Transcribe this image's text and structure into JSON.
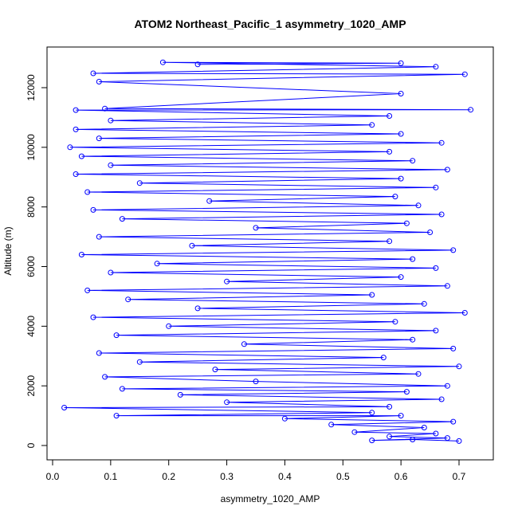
{
  "chart_data": {
    "type": "line",
    "title": "ATOM2 Northeast_Pacific_1 asymmetry_1020_AMP",
    "xlabel": "asymmetry_1020_AMP",
    "ylabel": "Altitude (m)",
    "xlim": [
      0.0,
      0.75
    ],
    "ylim": [
      0,
      13000
    ],
    "x_ticks": [
      0.0,
      0.1,
      0.2,
      0.3,
      0.4,
      0.5,
      0.6,
      0.7
    ],
    "x_tick_labels": [
      "0.0",
      "0.1",
      "0.2",
      "0.3",
      "0.4",
      "0.5",
      "0.6",
      "0.7"
    ],
    "y_ticks": [
      0,
      2000,
      4000,
      6000,
      8000,
      10000,
      12000
    ],
    "y_tick_labels": [
      "0",
      "2000",
      "4000",
      "6000",
      "8000",
      "10000",
      "12000"
    ],
    "grid": false,
    "legend": "none",
    "series": [
      {
        "color": "#0000ff",
        "marker": "open-circle",
        "points": [
          [
            0.7,
            150
          ],
          [
            0.62,
            200
          ],
          [
            0.55,
            170
          ],
          [
            0.68,
            250
          ],
          [
            0.58,
            300
          ],
          [
            0.66,
            400
          ],
          [
            0.52,
            450
          ],
          [
            0.64,
            600
          ],
          [
            0.48,
            700
          ],
          [
            0.69,
            800
          ],
          [
            0.4,
            900
          ],
          [
            0.6,
            1000
          ],
          [
            0.11,
            1000
          ],
          [
            0.55,
            1100
          ],
          [
            0.02,
            1270
          ],
          [
            0.58,
            1300
          ],
          [
            0.3,
            1450
          ],
          [
            0.67,
            1550
          ],
          [
            0.22,
            1700
          ],
          [
            0.61,
            1800
          ],
          [
            0.12,
            1900
          ],
          [
            0.68,
            2000
          ],
          [
            0.35,
            2150
          ],
          [
            0.09,
            2300
          ],
          [
            0.63,
            2400
          ],
          [
            0.28,
            2550
          ],
          [
            0.7,
            2650
          ],
          [
            0.15,
            2800
          ],
          [
            0.57,
            2950
          ],
          [
            0.08,
            3100
          ],
          [
            0.69,
            3250
          ],
          [
            0.33,
            3400
          ],
          [
            0.62,
            3550
          ],
          [
            0.11,
            3700
          ],
          [
            0.66,
            3850
          ],
          [
            0.2,
            4000
          ],
          [
            0.59,
            4150
          ],
          [
            0.07,
            4300
          ],
          [
            0.71,
            4450
          ],
          [
            0.25,
            4600
          ],
          [
            0.64,
            4750
          ],
          [
            0.13,
            4900
          ],
          [
            0.55,
            5050
          ],
          [
            0.06,
            5200
          ],
          [
            0.68,
            5350
          ],
          [
            0.3,
            5500
          ],
          [
            0.6,
            5650
          ],
          [
            0.1,
            5800
          ],
          [
            0.66,
            5950
          ],
          [
            0.18,
            6100
          ],
          [
            0.62,
            6250
          ],
          [
            0.05,
            6400
          ],
          [
            0.69,
            6550
          ],
          [
            0.24,
            6700
          ],
          [
            0.58,
            6850
          ],
          [
            0.08,
            7000
          ],
          [
            0.65,
            7150
          ],
          [
            0.35,
            7300
          ],
          [
            0.61,
            7450
          ],
          [
            0.12,
            7600
          ],
          [
            0.67,
            7750
          ],
          [
            0.07,
            7900
          ],
          [
            0.63,
            8050
          ],
          [
            0.27,
            8200
          ],
          [
            0.59,
            8350
          ],
          [
            0.06,
            8500
          ],
          [
            0.66,
            8650
          ],
          [
            0.15,
            8800
          ],
          [
            0.6,
            8950
          ],
          [
            0.04,
            9100
          ],
          [
            0.68,
            9250
          ],
          [
            0.1,
            9400
          ],
          [
            0.62,
            9550
          ],
          [
            0.05,
            9700
          ],
          [
            0.58,
            9850
          ],
          [
            0.03,
            10000
          ],
          [
            0.67,
            10150
          ],
          [
            0.08,
            10300
          ],
          [
            0.6,
            10450
          ],
          [
            0.04,
            10600
          ],
          [
            0.55,
            10750
          ],
          [
            0.1,
            10900
          ],
          [
            0.58,
            11050
          ],
          [
            0.04,
            11250
          ],
          [
            0.72,
            11260
          ],
          [
            0.09,
            11300
          ],
          [
            0.6,
            11800
          ],
          [
            0.08,
            12200
          ],
          [
            0.71,
            12450
          ],
          [
            0.07,
            12480
          ],
          [
            0.66,
            12700
          ],
          [
            0.19,
            12850
          ],
          [
            0.6,
            12820
          ],
          [
            0.25,
            12780
          ]
        ]
      }
    ]
  }
}
